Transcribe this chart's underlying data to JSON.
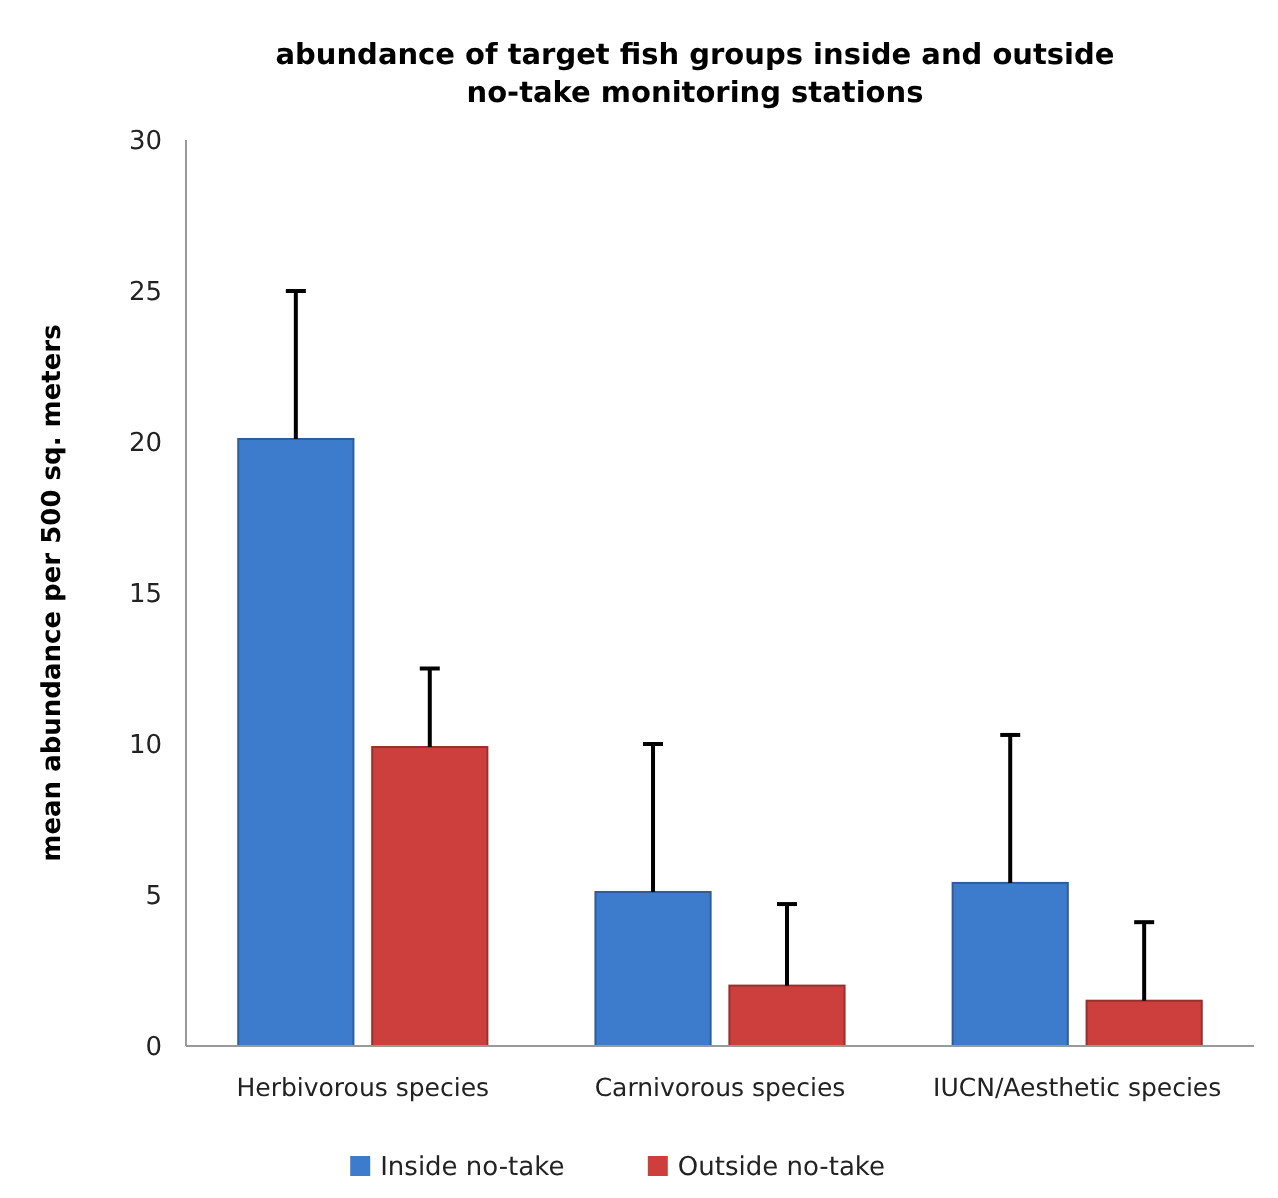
{
  "chart_data": {
    "type": "bar",
    "title": "abundance of target fish groups inside and outside no-take monitoring stations",
    "ylabel": "mean abundance per 500 sq. meters",
    "categories": [
      "Herbivorous species",
      "Carnivorous species",
      "IUCN/Aesthetic species"
    ],
    "series": [
      {
        "name": "Inside no-take",
        "color": "#3d7ccc",
        "values": [
          20.1,
          5.1,
          5.4
        ],
        "errors": [
          [
            20.1,
            25.0
          ],
          [
            5.1,
            10.0
          ],
          [
            5.4,
            10.3
          ]
        ]
      },
      {
        "name": "Outside no-take",
        "color": "#cc3f3d",
        "values": [
          9.9,
          2.0,
          1.5
        ],
        "errors": [
          [
            9.9,
            12.5
          ],
          [
            2.0,
            4.7
          ],
          [
            1.5,
            4.1
          ]
        ]
      }
    ],
    "ylim": [
      0,
      30
    ],
    "yticks": [
      0,
      5,
      10,
      15,
      20,
      25,
      30
    ],
    "grid": false,
    "legend": "bottom"
  }
}
